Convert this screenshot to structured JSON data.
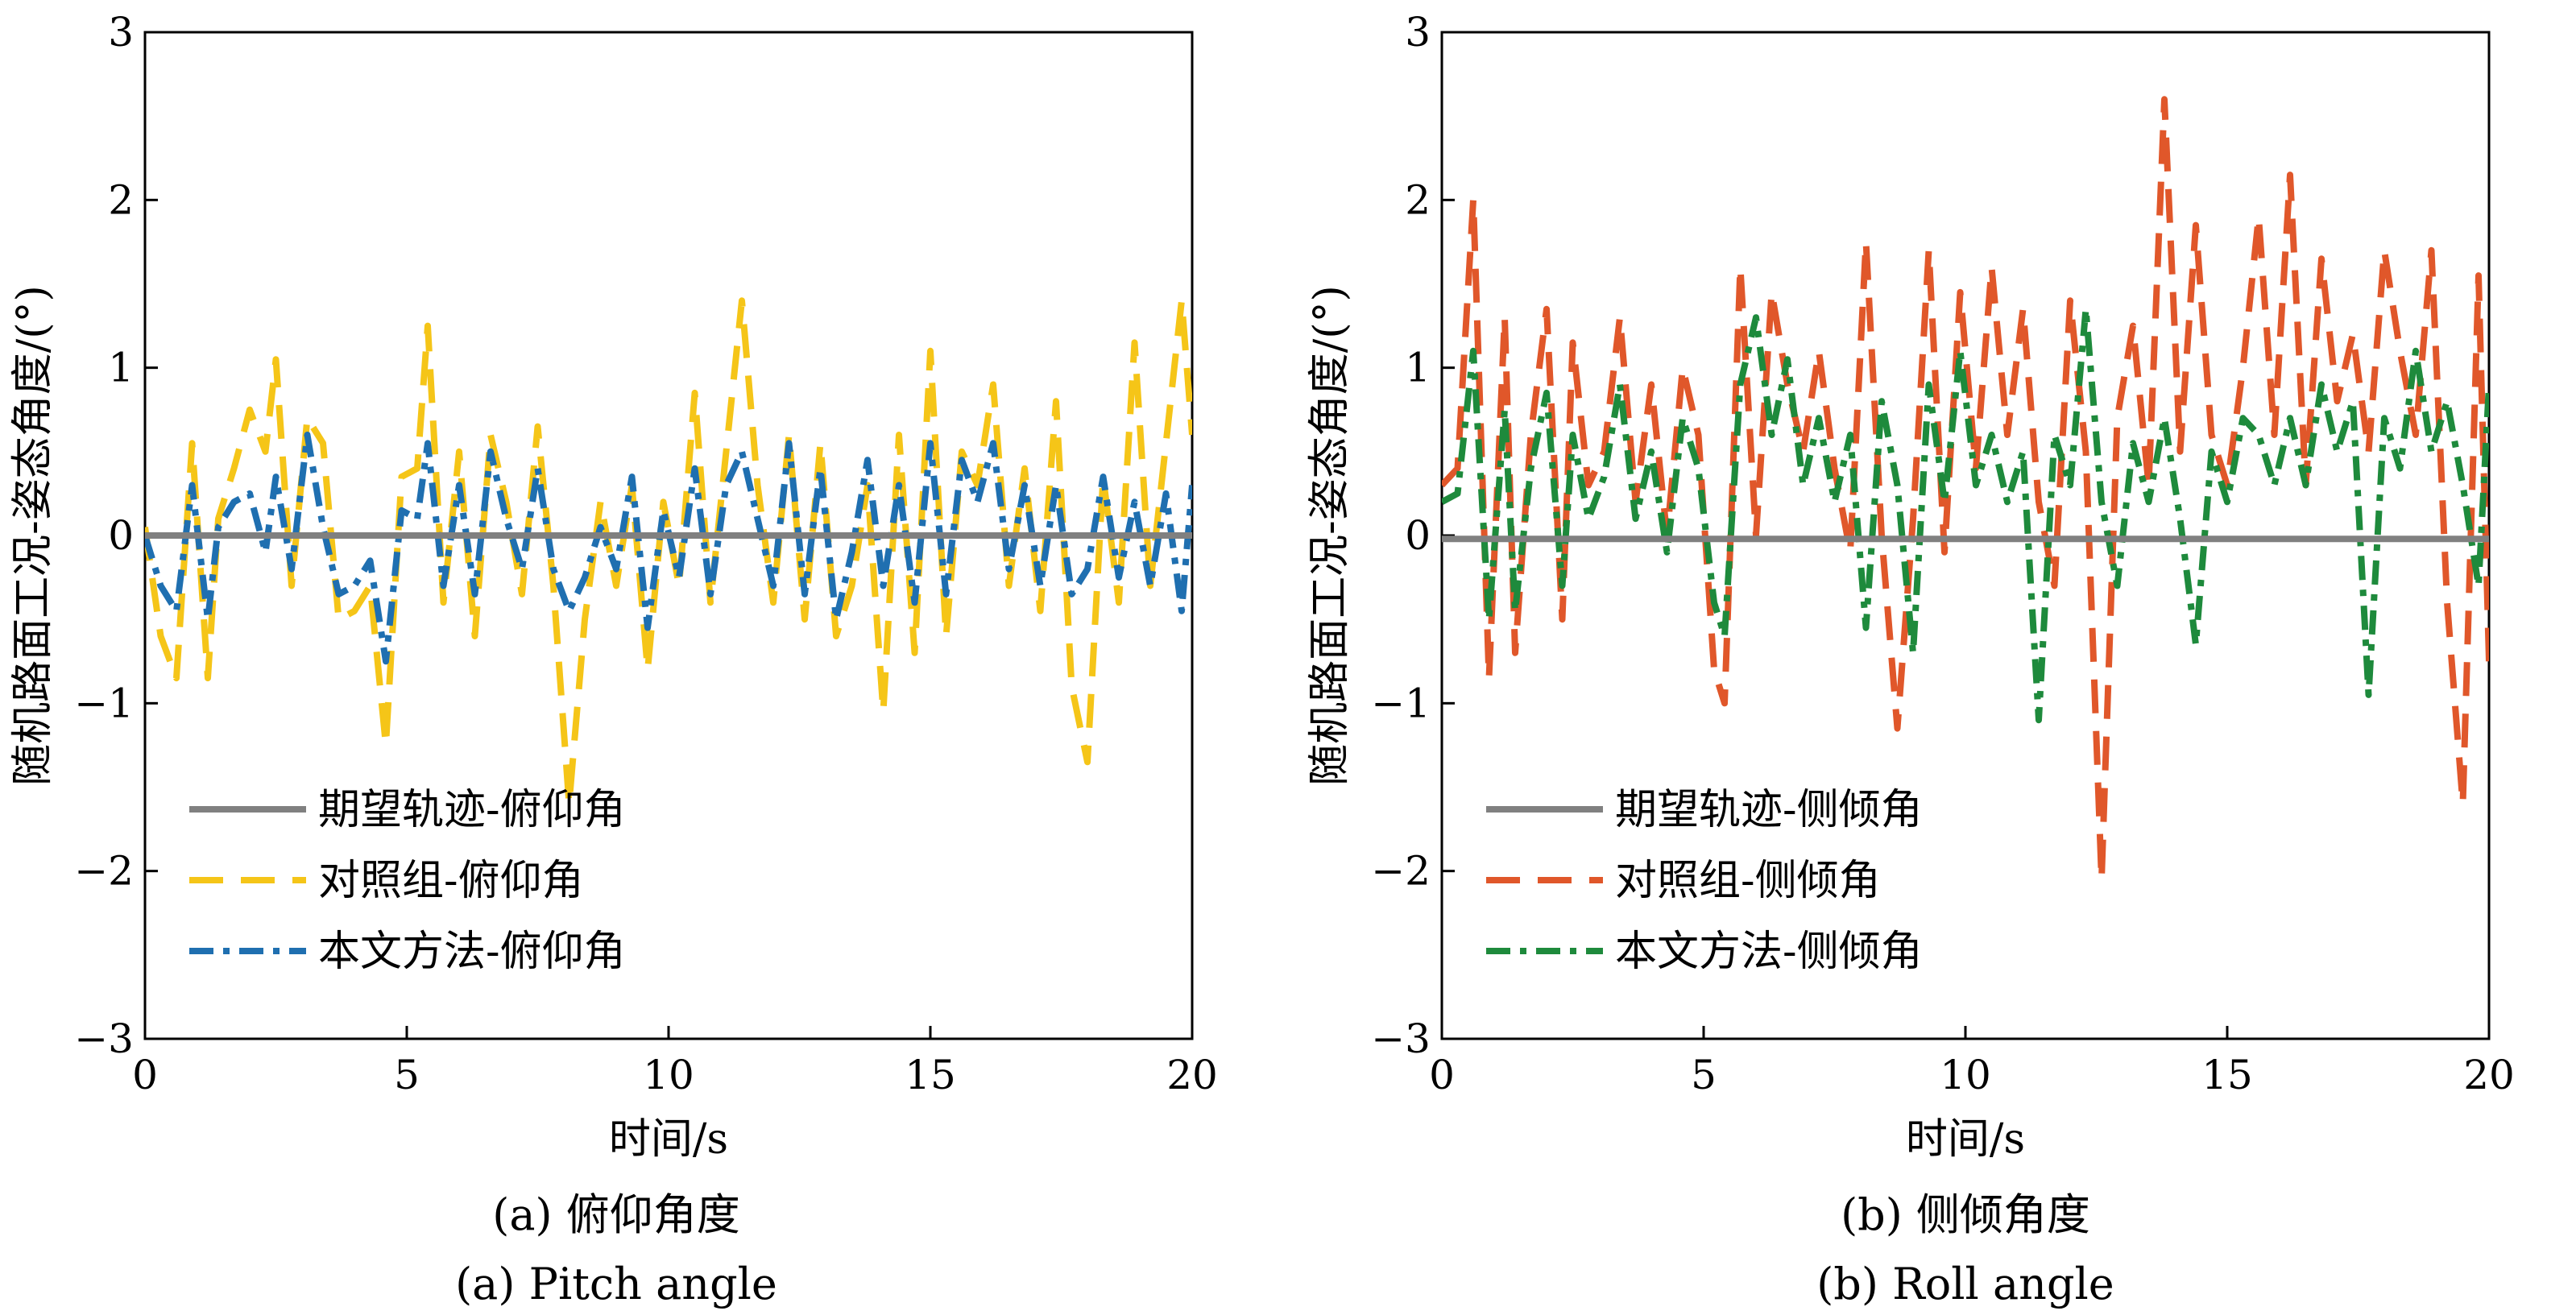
{
  "figure": {
    "panels": [
      {
        "caption_cn": "(a) 俯仰角度",
        "caption_en": "(a) Pitch angle"
      },
      {
        "caption_cn": "(b) 侧倾角度",
        "caption_en": "(b) Roll angle"
      }
    ]
  },
  "chart_data": [
    {
      "type": "line",
      "xlabel": "时间/s",
      "ylabel": "随机路面工况-姿态角度/(°)",
      "xlim": [
        0,
        20
      ],
      "ylim": [
        -3,
        3
      ],
      "xticks": [
        0,
        5,
        10,
        15,
        20
      ],
      "yticks": [
        -3,
        -2,
        -1,
        0,
        1,
        2,
        3
      ],
      "grid": false,
      "legend_position": "lower-left",
      "series": [
        {
          "name": "期望轨迹-俯仰角",
          "color": "#808080",
          "style": "solid",
          "x": [
            0,
            20
          ],
          "y": [
            0,
            0
          ]
        },
        {
          "name": "对照组-俯仰角",
          "color": "#F5C518",
          "style": "dashed",
          "x": [
            0,
            0.3,
            0.6,
            0.9,
            1.2,
            1.4,
            1.7,
            2.0,
            2.3,
            2.5,
            2.8,
            3.1,
            3.4,
            3.7,
            4.0,
            4.3,
            4.6,
            4.9,
            5.2,
            5.4,
            5.7,
            6.0,
            6.3,
            6.6,
            6.9,
            7.2,
            7.5,
            7.8,
            8.1,
            8.4,
            8.7,
            9.0,
            9.3,
            9.6,
            9.9,
            10.2,
            10.5,
            10.8,
            11.1,
            11.4,
            11.7,
            12.0,
            12.3,
            12.6,
            12.9,
            13.2,
            13.5,
            13.8,
            14.1,
            14.4,
            14.7,
            15.0,
            15.3,
            15.6,
            15.9,
            16.2,
            16.5,
            16.8,
            17.1,
            17.4,
            17.7,
            18.0,
            18.3,
            18.6,
            18.9,
            19.2,
            19.5,
            19.8,
            20
          ],
          "y": [
            0.05,
            -0.6,
            -0.85,
            0.55,
            -0.85,
            0.1,
            0.4,
            0.75,
            0.5,
            1.05,
            -0.3,
            0.7,
            0.55,
            -0.5,
            -0.45,
            -0.3,
            -1.25,
            0.35,
            0.4,
            1.25,
            -0.4,
            0.5,
            -0.6,
            0.6,
            0.2,
            -0.35,
            0.65,
            -0.3,
            -1.6,
            -0.5,
            0.2,
            -0.3,
            0.3,
            -0.8,
            0.2,
            -0.3,
            0.85,
            -0.4,
            0.5,
            1.4,
            0.3,
            -0.4,
            0.6,
            -0.5,
            0.55,
            -0.6,
            -0.3,
            0.3,
            -1.05,
            0.6,
            -0.7,
            1.1,
            -0.6,
            0.5,
            0.3,
            0.9,
            -0.3,
            0.4,
            -0.45,
            0.8,
            -0.9,
            -1.35,
            0.35,
            -0.4,
            1.15,
            -0.3,
            0.55,
            1.4,
            0.6
          ]
        },
        {
          "name": "本文方法-俯仰角",
          "color": "#1F6FB0",
          "style": "dashdot",
          "x": [
            0,
            0.3,
            0.6,
            0.9,
            1.2,
            1.4,
            1.7,
            2.0,
            2.3,
            2.5,
            2.8,
            3.1,
            3.4,
            3.7,
            4.0,
            4.3,
            4.6,
            4.9,
            5.2,
            5.4,
            5.7,
            6.0,
            6.3,
            6.6,
            6.9,
            7.2,
            7.5,
            7.8,
            8.1,
            8.4,
            8.7,
            9.0,
            9.3,
            9.6,
            9.9,
            10.2,
            10.5,
            10.8,
            11.1,
            11.4,
            11.7,
            12.0,
            12.3,
            12.6,
            12.9,
            13.2,
            13.5,
            13.8,
            14.1,
            14.4,
            14.7,
            15.0,
            15.3,
            15.6,
            15.9,
            16.2,
            16.5,
            16.8,
            17.1,
            17.4,
            17.7,
            18.0,
            18.3,
            18.6,
            18.9,
            19.2,
            19.5,
            19.8,
            20
          ],
          "y": [
            0.0,
            -0.3,
            -0.45,
            0.3,
            -0.5,
            0.05,
            0.2,
            0.25,
            -0.1,
            0.35,
            -0.2,
            0.6,
            0.05,
            -0.35,
            -0.3,
            -0.15,
            -0.75,
            0.15,
            0.1,
            0.55,
            -0.3,
            0.3,
            -0.35,
            0.5,
            0.1,
            -0.2,
            0.4,
            -0.2,
            -0.45,
            -0.25,
            0.05,
            -0.2,
            0.35,
            -0.55,
            0.15,
            -0.25,
            0.4,
            -0.35,
            0.3,
            0.5,
            0.1,
            -0.3,
            0.55,
            -0.35,
            0.4,
            -0.5,
            -0.1,
            0.45,
            -0.3,
            0.3,
            -0.4,
            0.55,
            -0.35,
            0.45,
            0.2,
            0.55,
            -0.2,
            0.3,
            -0.3,
            0.3,
            -0.35,
            -0.2,
            0.35,
            -0.25,
            0.2,
            -0.3,
            0.25,
            -0.45,
            0.3
          ]
        }
      ]
    },
    {
      "type": "line",
      "xlabel": "时间/s",
      "ylabel": "随机路面工况-姿态角度/(°)",
      "xlim": [
        0,
        20
      ],
      "ylim": [
        -3,
        3
      ],
      "xticks": [
        0,
        5,
        10,
        15,
        20
      ],
      "yticks": [
        -3,
        -2,
        -1,
        0,
        1,
        2,
        3
      ],
      "grid": false,
      "legend_position": "lower-left",
      "series": [
        {
          "name": "期望轨迹-侧倾角",
          "color": "#808080",
          "style": "solid",
          "x": [
            0,
            20
          ],
          "y": [
            -0.02,
            -0.02
          ]
        },
        {
          "name": "对照组-侧倾角",
          "color": "#E0572A",
          "style": "dashed",
          "x": [
            0,
            0.3,
            0.6,
            0.9,
            1.2,
            1.4,
            1.7,
            2.0,
            2.3,
            2.5,
            2.8,
            3.1,
            3.4,
            3.7,
            4.0,
            4.3,
            4.6,
            4.9,
            5.2,
            5.4,
            5.7,
            6.0,
            6.3,
            6.6,
            6.9,
            7.2,
            7.5,
            7.8,
            8.1,
            8.4,
            8.7,
            9.0,
            9.3,
            9.6,
            9.9,
            10.2,
            10.5,
            10.8,
            11.1,
            11.4,
            11.7,
            12.0,
            12.3,
            12.6,
            12.9,
            13.2,
            13.5,
            13.8,
            14.1,
            14.4,
            14.7,
            15.0,
            15.3,
            15.6,
            15.9,
            16.2,
            16.5,
            16.8,
            17.1,
            17.4,
            17.7,
            18.0,
            18.3,
            18.6,
            18.9,
            19.2,
            19.5,
            19.8,
            20
          ],
          "y": [
            0.3,
            0.4,
            2.0,
            -0.85,
            1.3,
            -0.7,
            0.6,
            1.35,
            -0.5,
            1.15,
            0.3,
            0.5,
            1.3,
            0.2,
            0.9,
            0.0,
            1.0,
            0.6,
            -0.8,
            -1.0,
            1.6,
            0.0,
            1.45,
            0.9,
            0.5,
            1.1,
            0.4,
            -0.1,
            1.75,
            0.0,
            -1.15,
            0.1,
            1.7,
            -0.1,
            1.45,
            0.4,
            1.6,
            0.6,
            1.35,
            0.2,
            -0.3,
            1.4,
            0.5,
            -2.05,
            0.7,
            1.25,
            0.3,
            2.6,
            0.5,
            1.85,
            0.6,
            0.3,
            1.0,
            1.9,
            0.6,
            2.15,
            0.3,
            1.65,
            0.8,
            1.2,
            0.5,
            1.7,
            1.1,
            0.6,
            1.7,
            -0.4,
            -1.6,
            1.55,
            -0.75
          ]
        },
        {
          "name": "本文方法-侧倾角",
          "color": "#1E8A3C",
          "style": "dashdot",
          "x": [
            0,
            0.3,
            0.6,
            0.9,
            1.2,
            1.4,
            1.7,
            2.0,
            2.3,
            2.5,
            2.8,
            3.1,
            3.4,
            3.7,
            4.0,
            4.3,
            4.6,
            4.9,
            5.2,
            5.4,
            5.7,
            6.0,
            6.3,
            6.6,
            6.9,
            7.2,
            7.5,
            7.8,
            8.1,
            8.4,
            8.7,
            9.0,
            9.3,
            9.6,
            9.9,
            10.2,
            10.5,
            10.8,
            11.1,
            11.4,
            11.7,
            12.0,
            12.3,
            12.6,
            12.9,
            13.2,
            13.5,
            13.8,
            14.1,
            14.4,
            14.7,
            15.0,
            15.3,
            15.6,
            15.9,
            16.2,
            16.5,
            16.8,
            17.1,
            17.4,
            17.7,
            18.0,
            18.3,
            18.6,
            18.9,
            19.2,
            19.5,
            19.8,
            20
          ],
          "y": [
            0.2,
            0.25,
            1.1,
            -0.5,
            0.75,
            -0.45,
            0.4,
            0.85,
            -0.3,
            0.6,
            0.1,
            0.35,
            0.9,
            0.1,
            0.5,
            -0.1,
            0.7,
            0.4,
            -0.4,
            -0.6,
            0.9,
            1.3,
            0.6,
            1.05,
            0.3,
            0.7,
            0.2,
            0.6,
            -0.55,
            0.8,
            0.3,
            -0.7,
            0.9,
            0.2,
            1.1,
            0.3,
            0.6,
            0.2,
            0.5,
            -1.1,
            0.6,
            0.3,
            1.35,
            0.2,
            -0.3,
            0.55,
            0.2,
            0.7,
            0.1,
            -0.65,
            0.5,
            0.2,
            0.7,
            0.6,
            0.3,
            0.7,
            0.3,
            0.9,
            0.5,
            0.8,
            -0.95,
            0.7,
            0.4,
            1.1,
            0.5,
            0.8,
            0.3,
            -0.3,
            0.9
          ]
        }
      ]
    }
  ]
}
